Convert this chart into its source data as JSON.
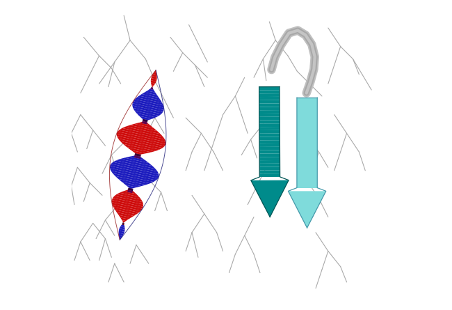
{
  "background_color": "#ffffff",
  "figure_width": 6.5,
  "figure_height": 4.45,
  "dpi": 100,
  "left_panel": {
    "ribbon_color_1": "#cc0000",
    "ribbon_color_2": "#1111bb",
    "ribbon_color_dark1": "#880000",
    "ribbon_color_dark2": "#000066"
  },
  "right_panel": {
    "arrow_color_1": "#008B8B",
    "arrow_color_2": "#7FDBDB",
    "loop_color_outer": "#c0c0c0",
    "loop_color_inner": "#a8a8a8",
    "loop_color_highlight": "#d8d8d8"
  },
  "stick_color": "#aaaaaa",
  "stick_lw": 0.8
}
